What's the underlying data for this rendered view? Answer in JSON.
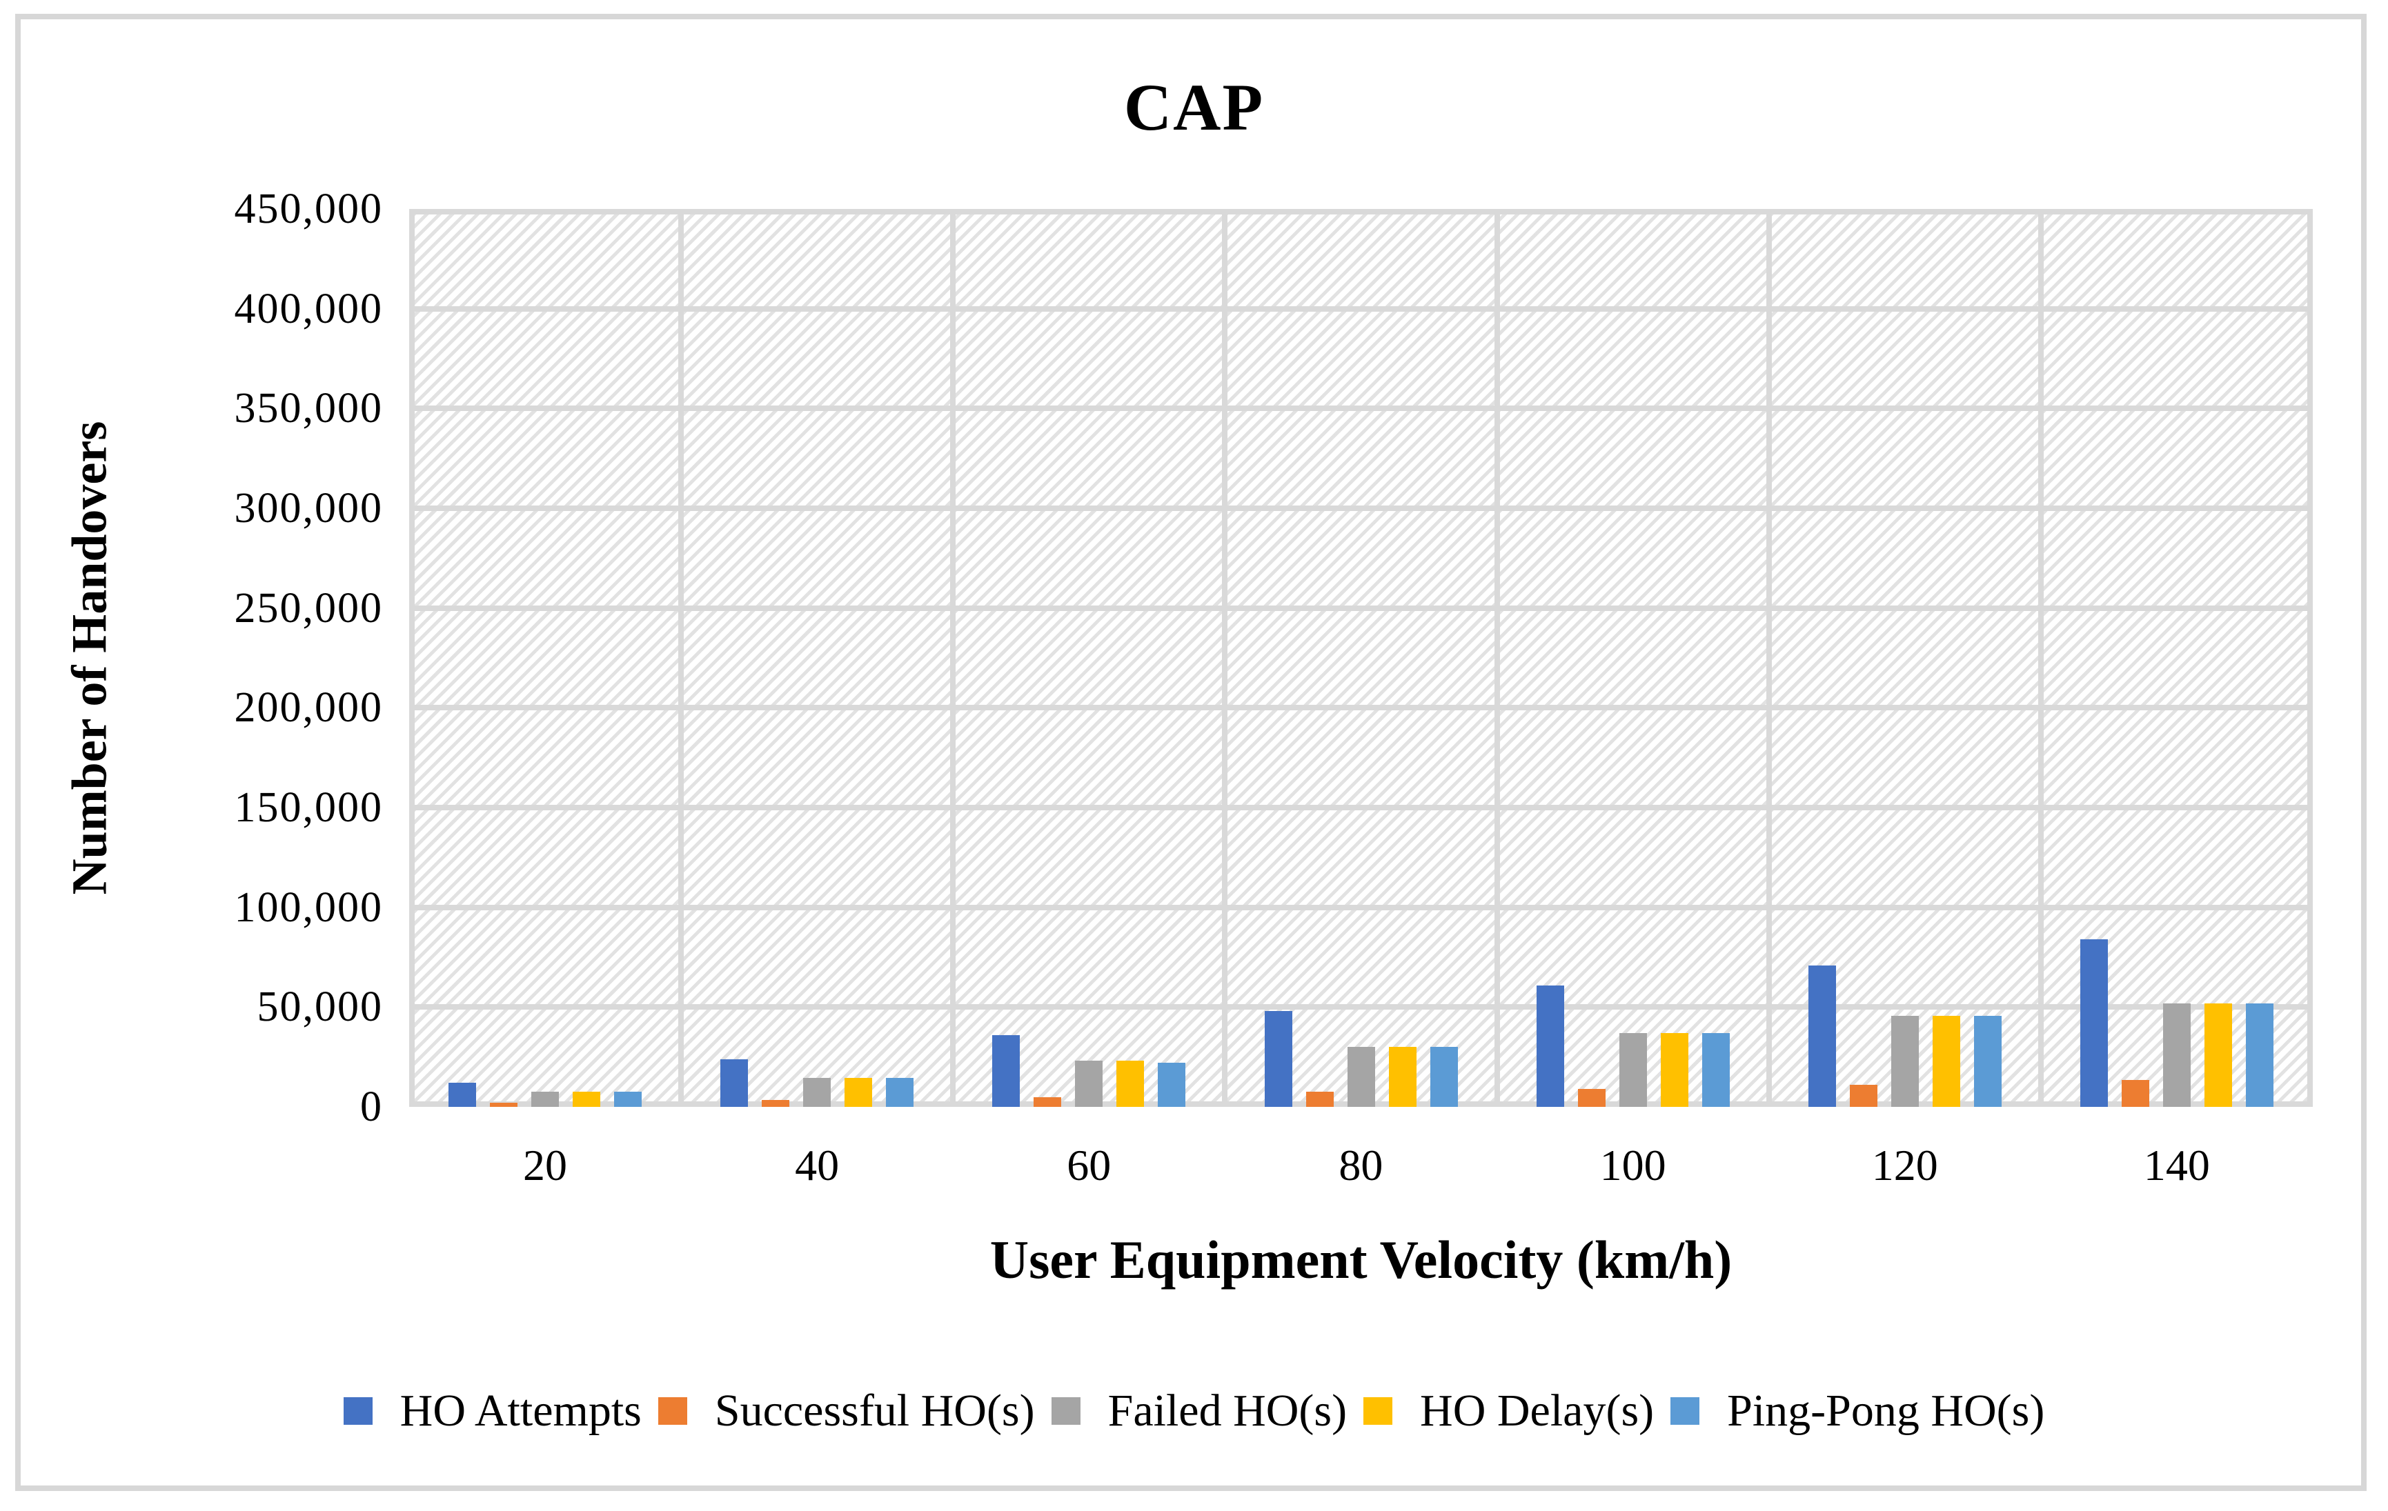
{
  "chart_data": {
    "type": "bar",
    "title": "CAP",
    "xlabel": "User Equipment Velocity (km/h)",
    "ylabel": "Number of Handovers",
    "categories": [
      "20",
      "40",
      "60",
      "80",
      "100",
      "120",
      "140"
    ],
    "series": [
      {
        "name": "HO Attempts",
        "color": "#4472C4",
        "values": [
          12000,
          24000,
          36000,
          48000,
          61000,
          71000,
          84000
        ]
      },
      {
        "name": "Successful HO(s)",
        "color": "#ED7D31",
        "values": [
          2000,
          3500,
          5000,
          7500,
          9000,
          11000,
          13500
        ]
      },
      {
        "name": "Failed HO(s)",
        "color": "#A5A5A5",
        "values": [
          7500,
          14500,
          23000,
          30000,
          37000,
          45500,
          52000
        ]
      },
      {
        "name": "HO Delay(s)",
        "color": "#FFC000",
        "values": [
          7500,
          14500,
          23000,
          30000,
          37000,
          45500,
          52000
        ]
      },
      {
        "name": "Ping-Pong HO(s)",
        "color": "#5B9BD5",
        "values": [
          7500,
          14500,
          22000,
          30000,
          37000,
          45500,
          52000
        ]
      }
    ],
    "ylim": [
      0,
      450000
    ],
    "ytick_step": 50000,
    "ytick_labels": [
      "0",
      "50,000",
      "100,000",
      "150,000",
      "200,000",
      "250,000",
      "300,000",
      "350,000",
      "400,000",
      "450,000"
    ],
    "grid": true,
    "legend_position": "bottom",
    "plot_background": "diagonal-hatch",
    "colors": {
      "gridline": "#d9d9d9",
      "frame_border": "#d7d7d7",
      "hatch": "#e2e2e2",
      "text": "#000000"
    }
  }
}
